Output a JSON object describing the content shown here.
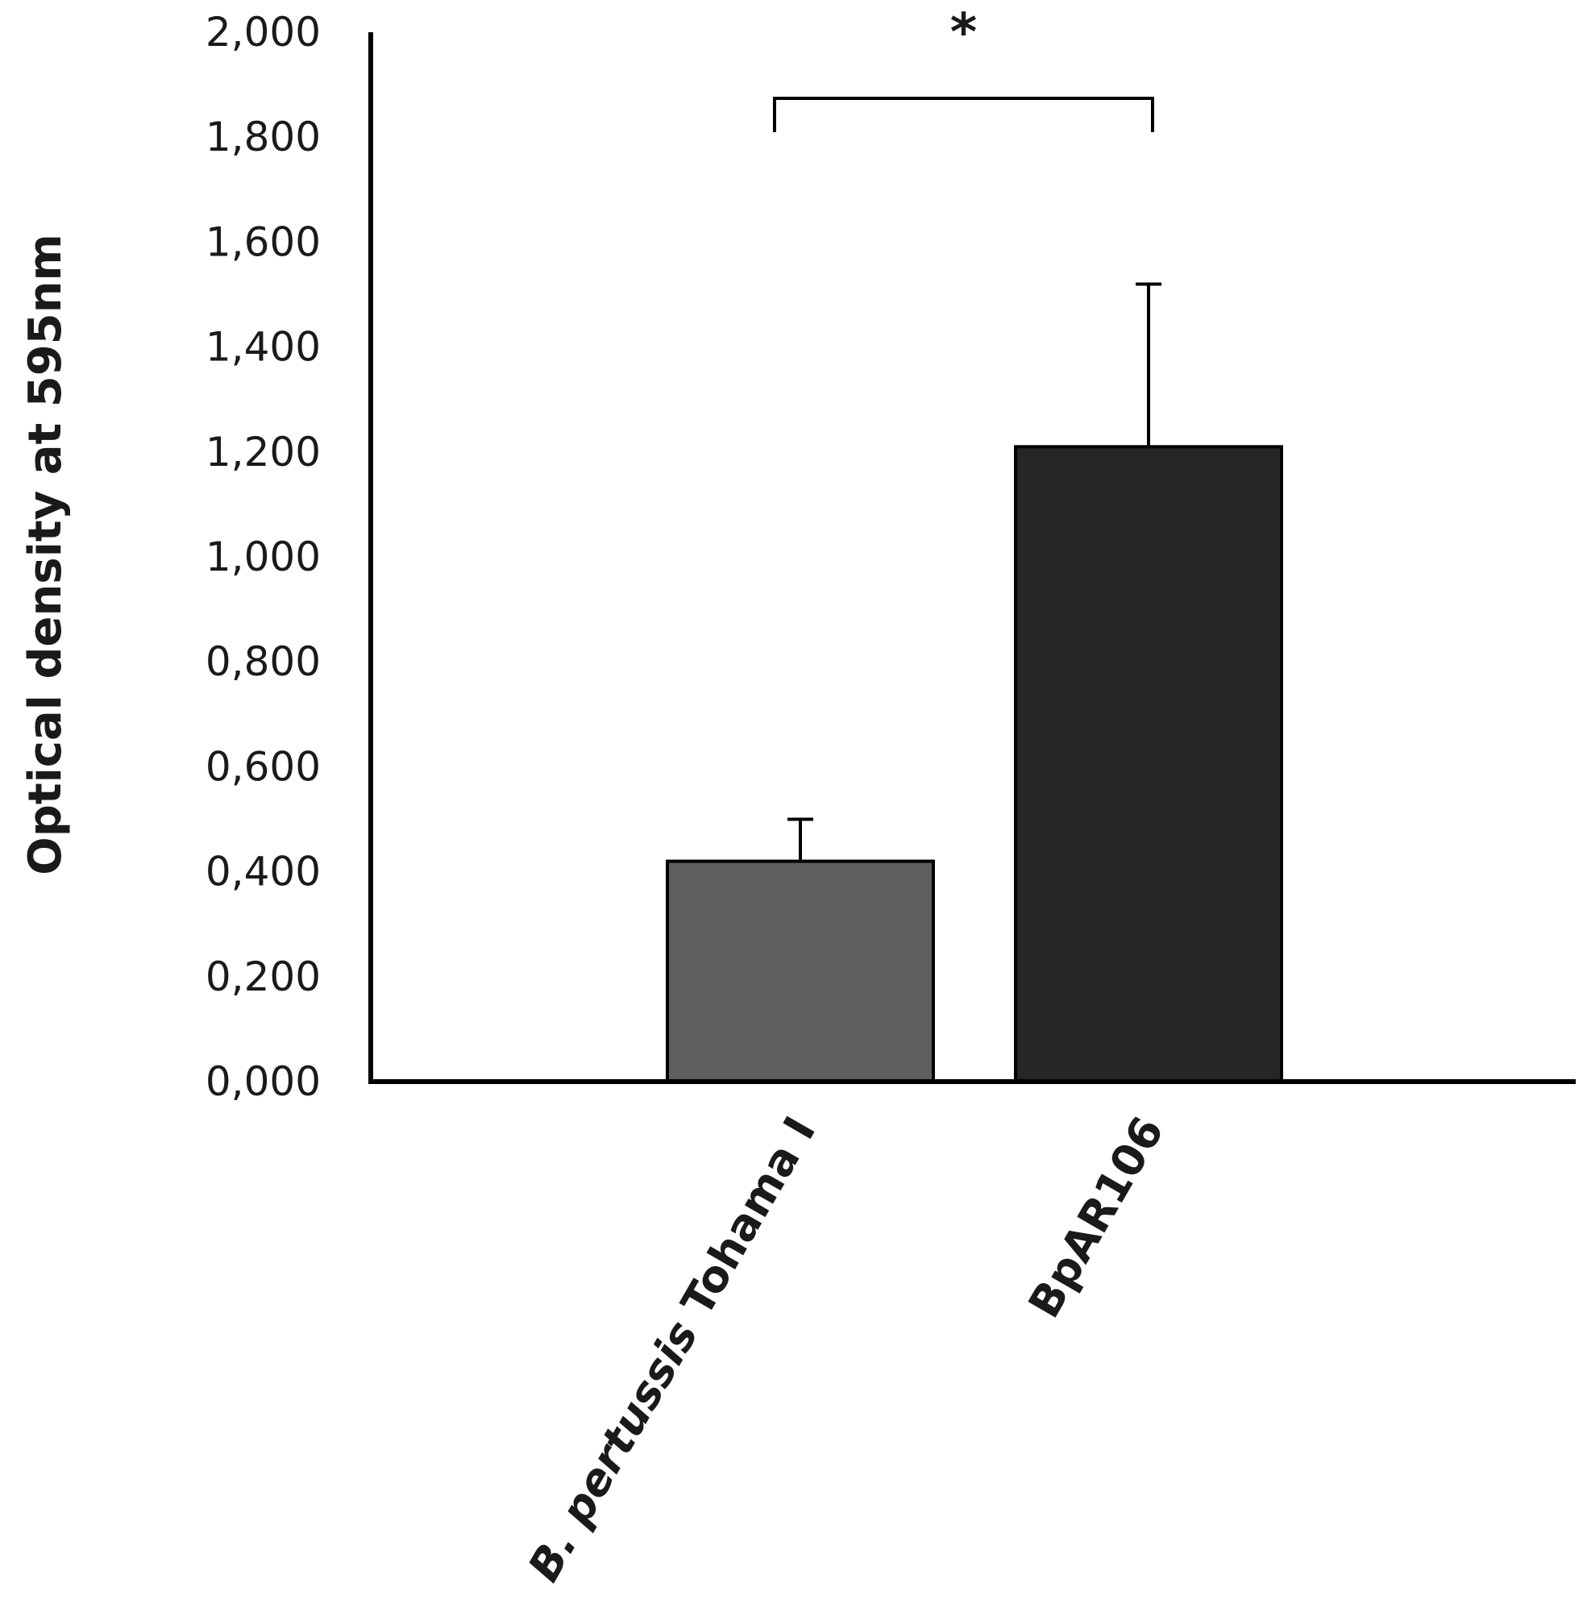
{
  "chart_data": {
    "type": "bar",
    "title": "",
    "xlabel": "",
    "ylabel": "Optical density at 595nm",
    "categories": [
      "B. pertussis Tohama I",
      "BpAR106"
    ],
    "categories_italic_part": [
      "B. pertussis",
      ""
    ],
    "values": [
      0.42,
      1.21
    ],
    "error_upper": [
      0.08,
      0.31
    ],
    "bar_colors": [
      "#5e5e5e",
      "#262626"
    ],
    "ylim": [
      0,
      2.0
    ],
    "yticks": [
      0,
      0.2,
      0.4,
      0.6,
      0.8,
      1.0,
      1.2,
      1.4,
      1.6,
      1.8,
      2.0
    ],
    "ytick_labels": [
      "0,000",
      "0,200",
      "0,400",
      "0,600",
      "0,800",
      "1,000",
      "1,200",
      "1,400",
      "1,600",
      "1,800",
      "2,000"
    ],
    "grid": false,
    "legend": "none",
    "annotations": [
      {
        "type": "significance",
        "between": [
          0,
          1
        ],
        "label": "*"
      }
    ]
  }
}
